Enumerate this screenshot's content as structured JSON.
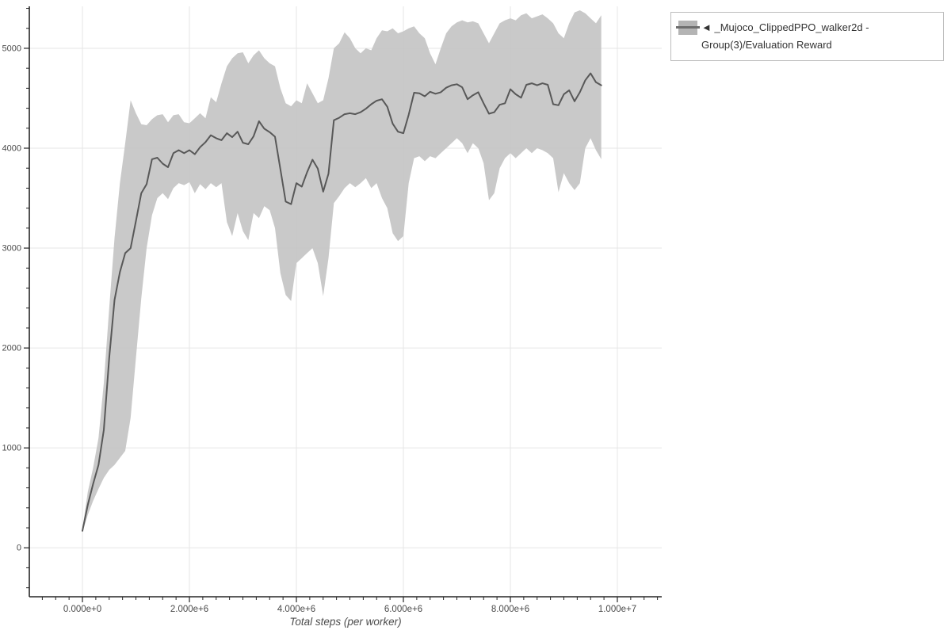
{
  "chart_data": {
    "type": "line",
    "title": "",
    "xlabel": "Total steps (per worker)",
    "ylabel": "",
    "grid": true,
    "legend_position": "outside-top-right",
    "legend_entries": [
      {
        "label": "◄ _Mujoco_ClippedPPO_walker2d - Group(3)/Evaluation Reward",
        "band_color": "#c2c2c2",
        "line_color": "#585858"
      }
    ],
    "xlim": [
      -993000,
      10830000
    ],
    "ylim": [
      -490,
      5420
    ],
    "x_ticks": {
      "values": [
        0,
        2000000,
        4000000,
        6000000,
        8000000,
        10000000
      ],
      "labels": [
        "0.000e+0",
        "2.000e+6",
        "4.000e+6",
        "6.000e+6",
        "8.000e+6",
        "1.000e+7"
      ],
      "minor_interval": 250000
    },
    "y_ticks": {
      "values": [
        0,
        1000,
        2000,
        3000,
        4000,
        5000
      ],
      "labels": [
        "0",
        "1000",
        "2000",
        "3000",
        "4000",
        "5000"
      ],
      "minor_interval": 200
    },
    "x_scale": 1000000,
    "series_x": [
      0.0,
      0.1,
      0.2,
      0.3,
      0.4,
      0.5,
      0.6,
      0.7,
      0.8,
      0.9,
      1.0,
      1.1,
      1.2,
      1.3,
      1.4,
      1.5,
      1.6,
      1.7,
      1.8,
      1.9,
      2.0,
      2.1,
      2.2,
      2.3,
      2.4,
      2.5,
      2.6,
      2.7,
      2.8,
      2.9,
      3.0,
      3.1,
      3.2,
      3.3,
      3.4,
      3.5,
      3.6,
      3.7,
      3.8,
      3.9,
      4.0,
      4.1,
      4.2,
      4.3,
      4.4,
      4.5,
      4.6,
      4.7,
      4.8,
      4.9,
      5.0,
      5.1,
      5.2,
      5.3,
      5.4,
      5.5,
      5.6,
      5.7,
      5.8,
      5.9,
      6.0,
      6.1,
      6.2,
      6.3,
      6.4,
      6.5,
      6.6,
      6.7,
      6.8,
      6.9,
      7.0,
      7.1,
      7.2,
      7.3,
      7.4,
      7.5,
      7.6,
      7.7,
      7.8,
      7.9,
      8.0,
      8.1,
      8.2,
      8.3,
      8.4,
      8.5,
      8.6,
      8.7,
      8.8,
      8.9,
      9.0,
      9.1,
      9.2,
      9.3,
      9.4,
      9.5,
      9.6,
      9.7
    ],
    "series": [
      {
        "name": "mean",
        "y": [
          170,
          430,
          640,
          830,
          1180,
          1900,
          2480,
          2760,
          2950,
          3000,
          3270,
          3550,
          3640,
          3890,
          3905,
          3845,
          3810,
          3950,
          3980,
          3950,
          3980,
          3940,
          4010,
          4060,
          4130,
          4100,
          4080,
          4150,
          4110,
          4165,
          4055,
          4040,
          4120,
          4270,
          4195,
          4160,
          4115,
          3790,
          3465,
          3440,
          3650,
          3615,
          3760,
          3885,
          3795,
          3565,
          3745,
          4280,
          4305,
          4340,
          4350,
          4340,
          4360,
          4395,
          4440,
          4475,
          4490,
          4415,
          4245,
          4165,
          4150,
          4335,
          4555,
          4550,
          4520,
          4565,
          4545,
          4560,
          4605,
          4630,
          4640,
          4610,
          4490,
          4530,
          4560,
          4450,
          4345,
          4360,
          4435,
          4450,
          4590,
          4540,
          4505,
          4635,
          4650,
          4630,
          4650,
          4635,
          4440,
          4430,
          4540,
          4580,
          4470,
          4560,
          4680,
          4750,
          4660,
          4630
        ]
      },
      {
        "name": "band_lower",
        "y": [
          155,
          330,
          470,
          590,
          700,
          780,
          830,
          900,
          970,
          1300,
          1900,
          2500,
          3000,
          3330,
          3500,
          3550,
          3490,
          3600,
          3650,
          3630,
          3660,
          3550,
          3640,
          3590,
          3650,
          3610,
          3650,
          3260,
          3120,
          3350,
          3170,
          3080,
          3350,
          3300,
          3420,
          3380,
          3200,
          2750,
          2530,
          2470,
          2850,
          2900,
          2950,
          3000,
          2850,
          2520,
          2900,
          3450,
          3520,
          3600,
          3650,
          3610,
          3650,
          3700,
          3600,
          3650,
          3500,
          3400,
          3150,
          3070,
          3120,
          3650,
          3900,
          3920,
          3870,
          3920,
          3900,
          3950,
          4000,
          4050,
          4100,
          4050,
          3950,
          4050,
          4000,
          3850,
          3480,
          3550,
          3800,
          3900,
          3950,
          3900,
          3950,
          4000,
          3950,
          4000,
          3980,
          3950,
          3900,
          3560,
          3750,
          3650,
          3580,
          3650,
          4000,
          4100,
          3980,
          3890
        ]
      },
      {
        "name": "band_upper",
        "y": [
          185,
          560,
          800,
          1100,
          1650,
          2400,
          3100,
          3650,
          4050,
          4480,
          4350,
          4240,
          4230,
          4290,
          4330,
          4340,
          4260,
          4330,
          4340,
          4260,
          4250,
          4300,
          4350,
          4300,
          4510,
          4460,
          4650,
          4820,
          4900,
          4950,
          4960,
          4850,
          4930,
          4980,
          4900,
          4850,
          4820,
          4600,
          4450,
          4420,
          4480,
          4450,
          4650,
          4550,
          4450,
          4480,
          4700,
          5000,
          5050,
          5160,
          5100,
          5000,
          4950,
          5000,
          4980,
          5100,
          5180,
          5170,
          5200,
          5150,
          5170,
          5200,
          5220,
          5150,
          5100,
          4950,
          4840,
          5000,
          5150,
          5220,
          5260,
          5280,
          5260,
          5270,
          5250,
          5150,
          5050,
          5150,
          5250,
          5280,
          5300,
          5280,
          5330,
          5350,
          5300,
          5320,
          5340,
          5300,
          5250,
          5150,
          5100,
          5250,
          5360,
          5380,
          5350,
          5300,
          5250,
          5330
        ]
      }
    ],
    "colors": {
      "background": "#ffffff",
      "grid": "#e6e6e6",
      "axis": "#262626",
      "tick_label": "#4a4a4a",
      "band": "#c2c2c2",
      "line": "#585858",
      "legend_border": "#bdbdbd",
      "legend_text": "#333333"
    },
    "layout": {
      "plot": {
        "l": 37,
        "r": 835,
        "t": 8,
        "b": 753
      }
    }
  }
}
